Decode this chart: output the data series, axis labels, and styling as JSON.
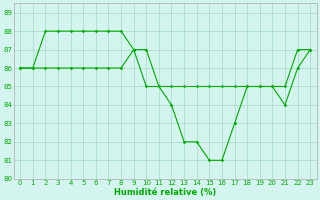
{
  "xlabel": "Humidité relative (%)",
  "background_color": "#d4f5ef",
  "grid_color": "#aadecc",
  "line_color": "#00aa00",
  "xlim": [
    -0.5,
    23.5
  ],
  "ylim": [
    80,
    89.5
  ],
  "xticks": [
    0,
    1,
    2,
    3,
    4,
    5,
    6,
    7,
    8,
    9,
    10,
    11,
    12,
    13,
    14,
    15,
    16,
    17,
    18,
    19,
    20,
    21,
    22,
    23
  ],
  "yticks": [
    80,
    81,
    82,
    83,
    84,
    85,
    86,
    87,
    88,
    89
  ],
  "line1_x": [
    0,
    1,
    2,
    3,
    4,
    5,
    6,
    7,
    8,
    9,
    10,
    11,
    12,
    13,
    14,
    15,
    16,
    17,
    18,
    19,
    20,
    21,
    22,
    23
  ],
  "line1_y": [
    86,
    86,
    88,
    88,
    88,
    88,
    88,
    88,
    88,
    87,
    87,
    85,
    84,
    82,
    82,
    81,
    81,
    83,
    85,
    85,
    85,
    84,
    86,
    87
  ],
  "line2_x": [
    0,
    1,
    2,
    3,
    4,
    5,
    6,
    7,
    8,
    9,
    10,
    11,
    12,
    13,
    14,
    15,
    16,
    17,
    18,
    19,
    20,
    21,
    22,
    23
  ],
  "line2_y": [
    86,
    86,
    86,
    86,
    86,
    86,
    86,
    86,
    86,
    87,
    85,
    85,
    85,
    85,
    85,
    85,
    85,
    85,
    85,
    85,
    85,
    85,
    87,
    87
  ]
}
